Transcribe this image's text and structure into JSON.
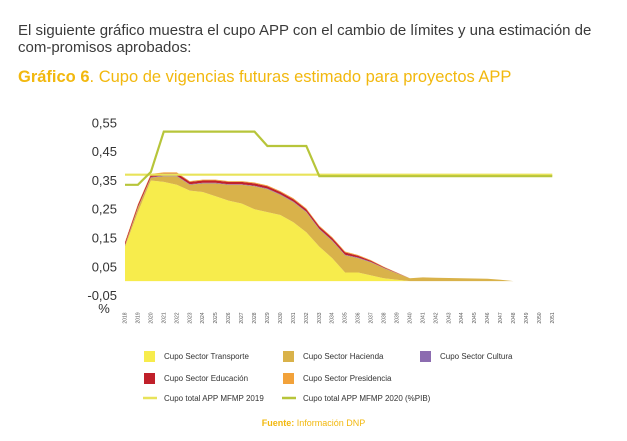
{
  "intro_text": "El siguiente gráfico muestra el cupo APP con el cambio de límites y una estimación de com-promisos aprobados:",
  "chart_title": {
    "label": "Gráfico 6",
    "text": ". Cupo de vigencias futuras estimado para proyectos APP"
  },
  "source": {
    "label": "Fuente:",
    "text": " Información DNP"
  },
  "colors": {
    "transporte": "#f7ec4c",
    "hacienda": "#d9b24a",
    "cultura": "#8c6cb0",
    "educacion": "#c0202a",
    "presidencia": "#f2a23a",
    "mfmp2019": "#e8e35a",
    "mfmp2020": "#b7c53a",
    "title": "#f2b80e"
  },
  "chart_data": {
    "type": "area",
    "title": "",
    "xlabel": "",
    "ylabel": "%",
    "ylim": [
      -0.05,
      0.6
    ],
    "ytick_labels": [
      "-0,05",
      "0,05",
      "0,15",
      "0,25",
      "0,35",
      "0,45",
      "0,55"
    ],
    "yticks": [
      -0.05,
      0.05,
      0.15,
      0.25,
      0.35,
      0.45,
      0.55
    ],
    "categories": [
      "2018",
      "2019",
      "2020",
      "2021",
      "2022",
      "2023",
      "2024",
      "2025",
      "2026",
      "2027",
      "2028",
      "2029",
      "2030",
      "2031",
      "2032",
      "2033",
      "2034",
      "2035",
      "2036",
      "2037",
      "2038",
      "2039",
      "2040",
      "2041",
      "2042",
      "2043",
      "2044",
      "2045",
      "2046",
      "2047",
      "2048",
      "2049",
      "2050",
      "2051"
    ],
    "stack_series": [
      {
        "name": "Cupo Sector Transporte",
        "color_key": "transporte",
        "values": [
          0.12,
          0.24,
          0.35,
          0.345,
          0.335,
          0.315,
          0.31,
          0.295,
          0.28,
          0.27,
          0.25,
          0.24,
          0.23,
          0.205,
          0.17,
          0.12,
          0.08,
          0.03,
          0.03,
          0.02,
          0.01,
          0.005,
          0,
          0,
          0,
          0,
          0,
          0,
          0,
          0,
          0,
          0,
          0,
          0
        ]
      },
      {
        "name": "Cupo Sector Hacienda",
        "color_key": "hacienda",
        "values": [
          0.005,
          0.015,
          0.01,
          0.02,
          0.03,
          0.02,
          0.03,
          0.045,
          0.055,
          0.065,
          0.08,
          0.08,
          0.07,
          0.07,
          0.07,
          0.06,
          0.06,
          0.06,
          0.05,
          0.045,
          0.035,
          0.022,
          0.01,
          0.013,
          0.012,
          0.011,
          0.01,
          0.009,
          0.008,
          0.005,
          0,
          0,
          0,
          0
        ]
      },
      {
        "name": "Cupo Sector Cultura",
        "color_key": "cultura",
        "values": [
          0.001,
          0.002,
          0.002,
          0.002,
          0.002,
          0.002,
          0.002,
          0.002,
          0.002,
          0.002,
          0.002,
          0.002,
          0.002,
          0.002,
          0.002,
          0.002,
          0.002,
          0.002,
          0.002,
          0.002,
          0.001,
          0.001,
          0,
          0,
          0,
          0,
          0,
          0,
          0,
          0,
          0,
          0,
          0,
          0
        ]
      },
      {
        "name": "Cupo Sector Educación",
        "color_key": "educacion",
        "values": [
          0.008,
          0.008,
          0.008,
          0.008,
          0.008,
          0.008,
          0.008,
          0.008,
          0.008,
          0.008,
          0.008,
          0.008,
          0.008,
          0.008,
          0.008,
          0.008,
          0.008,
          0.008,
          0.006,
          0.004,
          0.002,
          0.001,
          0,
          0,
          0,
          0,
          0,
          0,
          0,
          0,
          0,
          0,
          0,
          0
        ]
      },
      {
        "name": "Cupo Sector Presidencia",
        "color_key": "presidencia",
        "values": [
          0.003,
          0.003,
          0.003,
          0.003,
          0.003,
          0.003,
          0.003,
          0.003,
          0.003,
          0.003,
          0.003,
          0.003,
          0.003,
          0.003,
          0.003,
          0.003,
          0.003,
          0.003,
          0.003,
          0.002,
          0.002,
          0.001,
          0,
          0,
          0,
          0,
          0,
          0,
          0,
          0,
          0,
          0,
          0,
          0
        ]
      }
    ],
    "line_series": [
      {
        "name": "Cupo total APP MFMP 2019",
        "color_key": "mfmp2019",
        "values": [
          0.37,
          0.37,
          0.37,
          0.37,
          0.37,
          0.37,
          0.37,
          0.37,
          0.37,
          0.37,
          0.37,
          0.37,
          0.37,
          0.37,
          0.37,
          0.37,
          0.37,
          0.37,
          0.37,
          0.37,
          0.37,
          0.37,
          0.37,
          0.37,
          0.37,
          0.37,
          0.37,
          0.37,
          0.37,
          0.37,
          0.37,
          0.37,
          0.37,
          0.37
        ]
      },
      {
        "name": "Cupo total APP MFMP 2020 (%PIB)",
        "color_key": "mfmp2020",
        "values": [
          0.335,
          0.335,
          0.38,
          0.52,
          0.52,
          0.52,
          0.52,
          0.52,
          0.52,
          0.52,
          0.52,
          0.47,
          0.47,
          0.47,
          0.47,
          0.365,
          0.365,
          0.365,
          0.365,
          0.365,
          0.365,
          0.365,
          0.365,
          0.365,
          0.365,
          0.365,
          0.365,
          0.365,
          0.365,
          0.365,
          0.365,
          0.365,
          0.365,
          0.365
        ]
      }
    ],
    "grid": false,
    "legend_position": "bottom"
  }
}
